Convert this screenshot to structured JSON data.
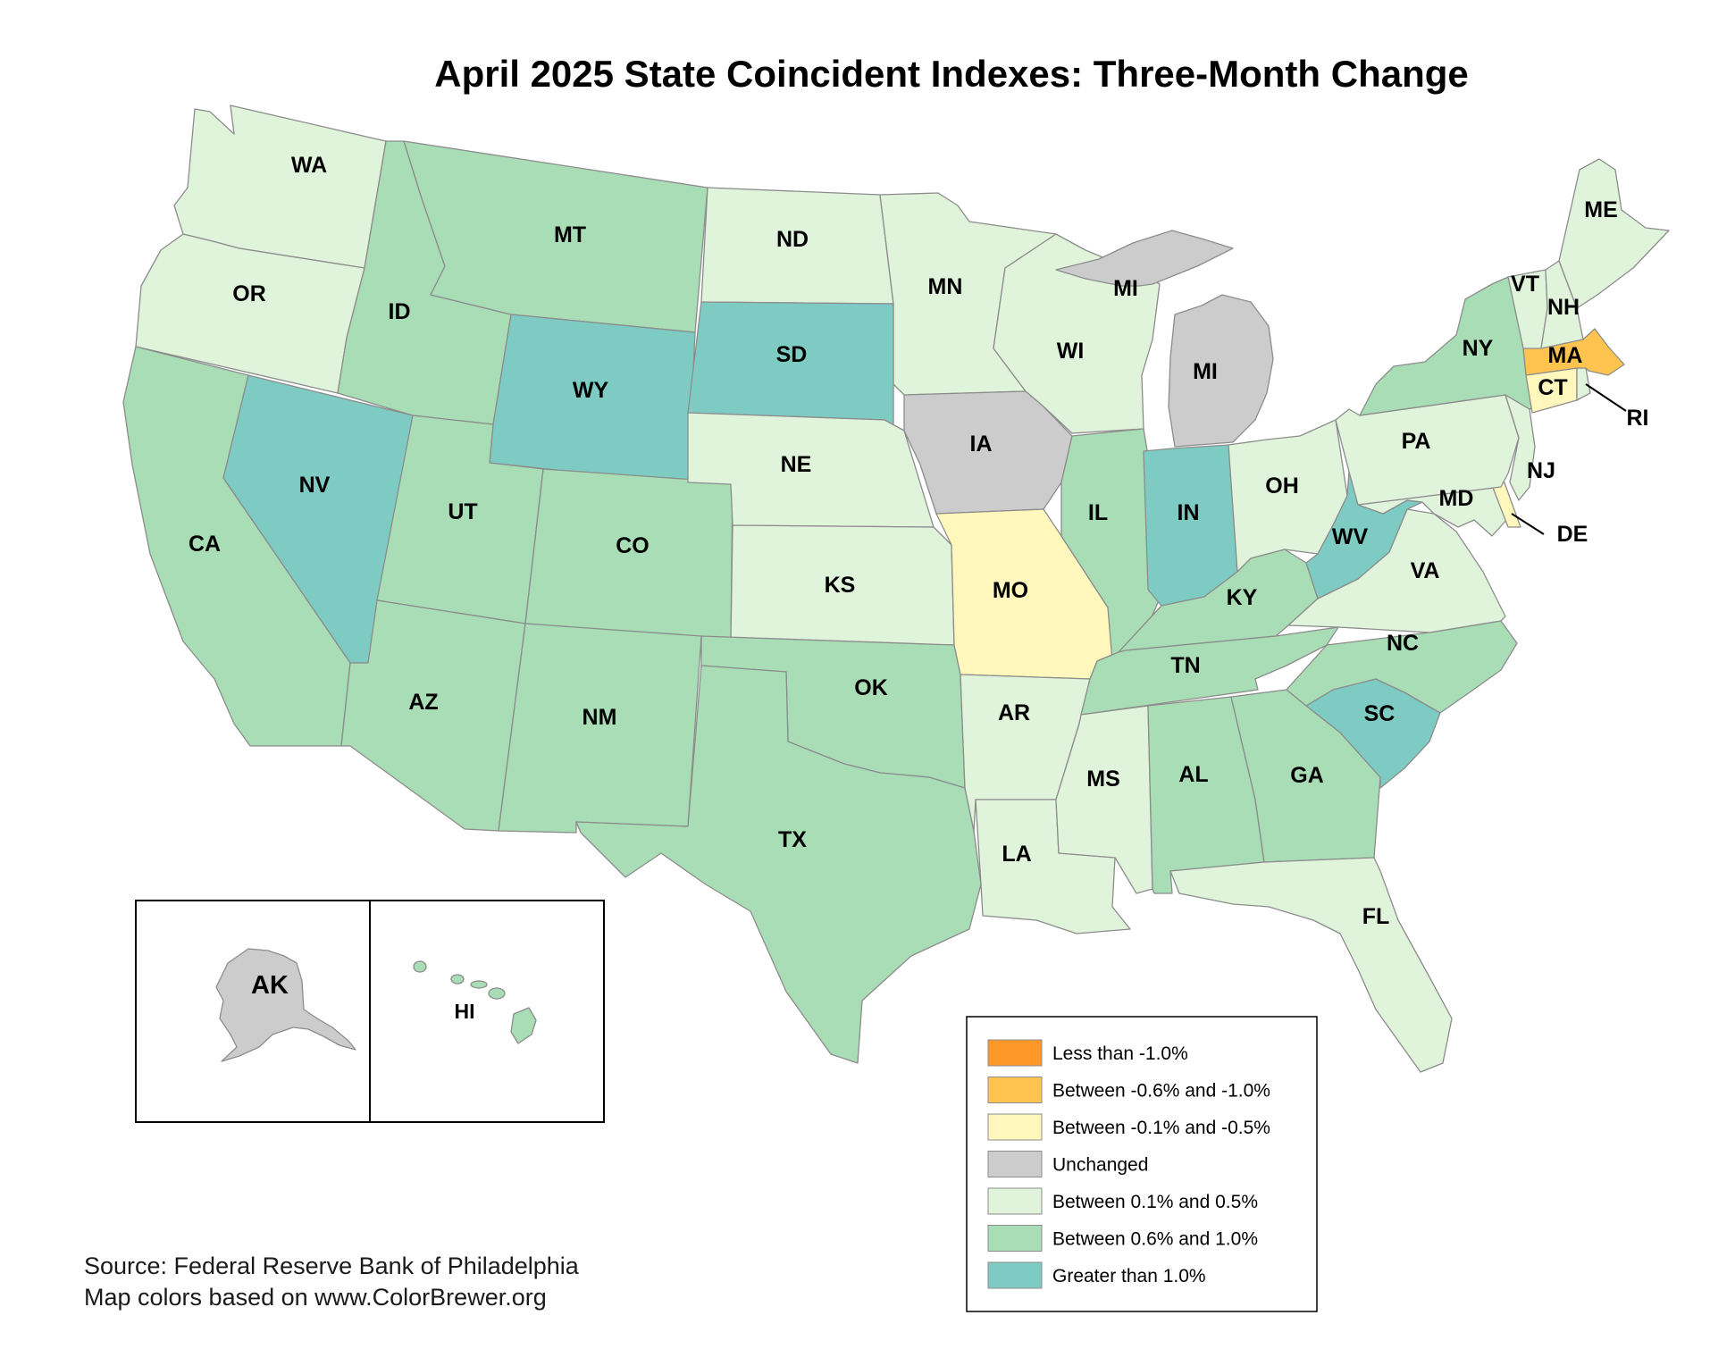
{
  "title": "April 2025 State Coincident Indexes: Three-Month Change",
  "source_lines": [
    "Source: Federal Reserve Bank of Philadelphia",
    "Map colors based on www.ColorBrewer.org"
  ],
  "legend": [
    {
      "key": "lt_neg1",
      "label": "Less than -1.0%",
      "color": "#fe9929"
    },
    {
      "key": "neg06_1",
      "label": "Between -0.6% and -1.0%",
      "color": "#fec44f"
    },
    {
      "key": "neg01_05",
      "label": "Between -0.1% and -0.5%",
      "color": "#fff7bc"
    },
    {
      "key": "unch",
      "label": "Unchanged",
      "color": "#cccccc"
    },
    {
      "key": "p01_05",
      "label": "Between 0.1% and 0.5%",
      "color": "#e0f3db"
    },
    {
      "key": "p06_1",
      "label": "Between 0.6% and 1.0%",
      "color": "#a8ddb5"
    },
    {
      "key": "gt1",
      "label": "Greater than 1.0%",
      "color": "#7ecbc4"
    }
  ],
  "states": {
    "WA": {
      "label": "WA",
      "category": "p01_05"
    },
    "OR": {
      "label": "OR",
      "category": "p01_05"
    },
    "CA": {
      "label": "CA",
      "category": "p06_1"
    },
    "NV": {
      "label": "NV",
      "category": "gt1"
    },
    "ID": {
      "label": "ID",
      "category": "p06_1"
    },
    "MT": {
      "label": "MT",
      "category": "p06_1"
    },
    "WY": {
      "label": "WY",
      "category": "gt1"
    },
    "UT": {
      "label": "UT",
      "category": "p06_1"
    },
    "AZ": {
      "label": "AZ",
      "category": "p06_1"
    },
    "CO": {
      "label": "CO",
      "category": "p06_1"
    },
    "NM": {
      "label": "NM",
      "category": "p06_1"
    },
    "ND": {
      "label": "ND",
      "category": "p01_05"
    },
    "SD": {
      "label": "SD",
      "category": "gt1"
    },
    "NE": {
      "label": "NE",
      "category": "p01_05"
    },
    "KS": {
      "label": "KS",
      "category": "p01_05"
    },
    "OK": {
      "label": "OK",
      "category": "p06_1"
    },
    "TX": {
      "label": "TX",
      "category": "p06_1"
    },
    "MN": {
      "label": "MN",
      "category": "p01_05"
    },
    "IA": {
      "label": "IA",
      "category": "unch"
    },
    "MO": {
      "label": "MO",
      "category": "neg01_05"
    },
    "AR": {
      "label": "AR",
      "category": "p01_05"
    },
    "LA": {
      "label": "LA",
      "category": "p01_05"
    },
    "WI": {
      "label": "WI",
      "category": "p01_05"
    },
    "IL": {
      "label": "IL",
      "category": "p06_1"
    },
    "MI": {
      "label": "MI",
      "category": "unch"
    },
    "MI_UP": {
      "label": "MI",
      "category": "unch"
    },
    "IN": {
      "label": "IN",
      "category": "gt1"
    },
    "OH": {
      "label": "OH",
      "category": "p01_05"
    },
    "KY": {
      "label": "KY",
      "category": "p06_1"
    },
    "TN": {
      "label": "TN",
      "category": "p06_1"
    },
    "MS": {
      "label": "MS",
      "category": "p01_05"
    },
    "AL": {
      "label": "AL",
      "category": "p06_1"
    },
    "GA": {
      "label": "GA",
      "category": "p06_1"
    },
    "FL": {
      "label": "FL",
      "category": "p01_05"
    },
    "SC": {
      "label": "SC",
      "category": "gt1"
    },
    "NC": {
      "label": "NC",
      "category": "p06_1"
    },
    "VA": {
      "label": "VA",
      "category": "p01_05"
    },
    "WV": {
      "label": "WV",
      "category": "gt1"
    },
    "MD": {
      "label": "MD",
      "category": "p01_05"
    },
    "DE": {
      "label": "DE",
      "category": "neg01_05"
    },
    "PA": {
      "label": "PA",
      "category": "p01_05"
    },
    "NJ": {
      "label": "NJ",
      "category": "p01_05"
    },
    "NY": {
      "label": "NY",
      "category": "p06_1"
    },
    "CT": {
      "label": "CT",
      "category": "neg01_05"
    },
    "RI": {
      "label": "RI",
      "category": "p01_05"
    },
    "MA": {
      "label": "MA",
      "category": "neg06_1"
    },
    "VT": {
      "label": "VT",
      "category": "p01_05"
    },
    "NH": {
      "label": "NH",
      "category": "p01_05"
    },
    "ME": {
      "label": "ME",
      "category": "p01_05"
    },
    "AK": {
      "label": "AK",
      "category": "unch"
    },
    "HI": {
      "label": "HI",
      "category": "p06_1"
    }
  }
}
